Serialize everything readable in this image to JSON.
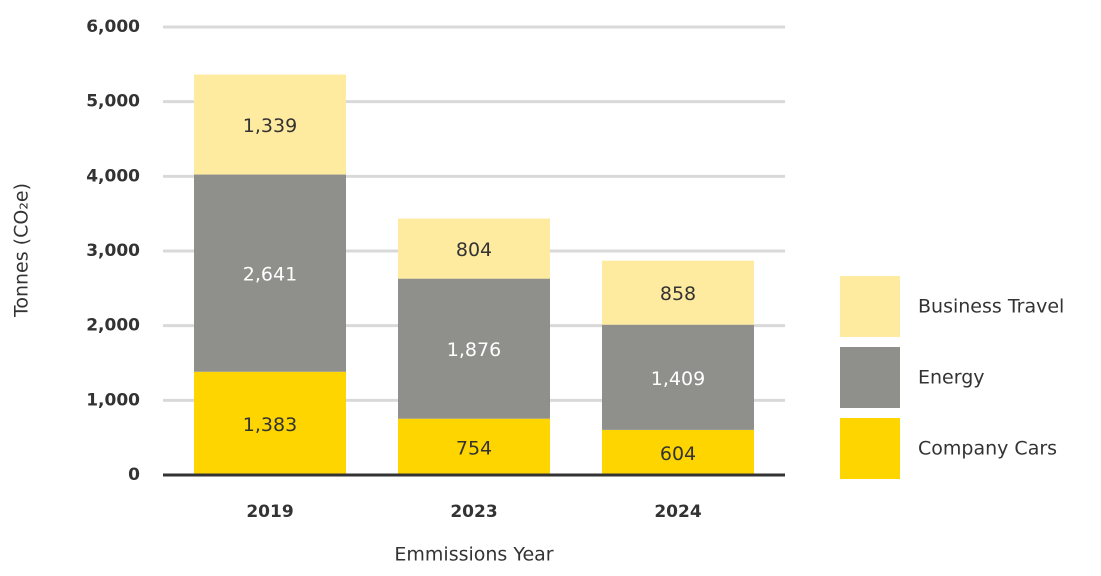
{
  "chart_data": {
    "type": "stacked_bar",
    "x_label": "Emmissions Year",
    "y_label": "Tonnes (CO₂e)",
    "categories": [
      "2019",
      "2023",
      "2024"
    ],
    "series": [
      {
        "name": "Company Cars",
        "color": "#ffd500",
        "label_color": "#333333",
        "values": [
          1383,
          754,
          604
        ],
        "value_labels": [
          "1,383",
          "754",
          "604"
        ]
      },
      {
        "name": "Energy",
        "color": "#8f8f8c",
        "label_color": "#ffffff",
        "values": [
          2641,
          1876,
          1409
        ],
        "value_labels": [
          "2,641",
          "1,876",
          "1,409"
        ]
      },
      {
        "name": "Business Travel",
        "color": "#ffeba0",
        "label_color": "#333333",
        "values": [
          1339,
          804,
          858
        ],
        "value_labels": [
          "1,339",
          "804",
          "858"
        ]
      }
    ],
    "ylim": [
      0,
      6000
    ],
    "yticks": [
      0,
      {
        "value": 1000,
        "label": "1,000"
      },
      {
        "value": 2000,
        "label": "2,000"
      },
      {
        "value": 3000,
        "label": "3,000"
      },
      {
        "value": 4000,
        "label": "4,000"
      },
      {
        "value": 5000,
        "label": "5,000"
      },
      {
        "value": 6000,
        "label": "6,000"
      }
    ],
    "grid": true,
    "legend": "right"
  }
}
